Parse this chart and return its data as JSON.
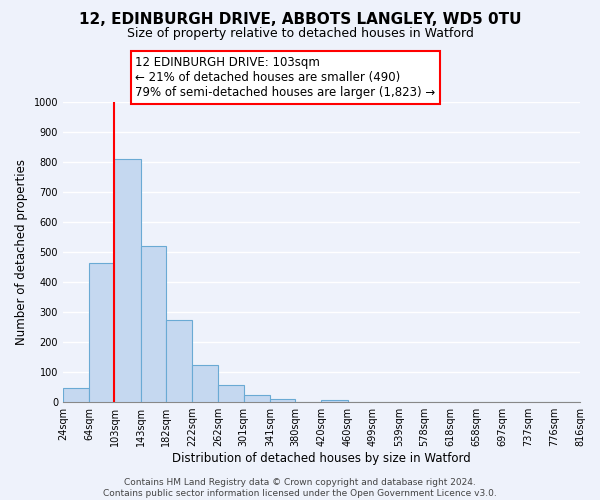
{
  "title": "12, EDINBURGH DRIVE, ABBOTS LANGLEY, WD5 0TU",
  "subtitle": "Size of property relative to detached houses in Watford",
  "xlabel": "Distribution of detached houses by size in Watford",
  "ylabel": "Number of detached properties",
  "bar_edges": [
    24,
    64,
    103,
    143,
    182,
    222,
    262,
    301,
    341,
    380,
    420,
    460,
    499,
    539,
    578,
    618,
    658,
    697,
    737,
    776,
    816
  ],
  "bar_heights": [
    48,
    462,
    810,
    520,
    275,
    125,
    58,
    22,
    11,
    0,
    8,
    0,
    0,
    0,
    0,
    0,
    0,
    0,
    0,
    0
  ],
  "bar_color": "#c5d8f0",
  "bar_edge_color": "#6aaad4",
  "property_line_x": 103,
  "property_line_color": "red",
  "ylim": [
    0,
    1000
  ],
  "yticks": [
    0,
    100,
    200,
    300,
    400,
    500,
    600,
    700,
    800,
    900,
    1000
  ],
  "xtick_labels": [
    "24sqm",
    "64sqm",
    "103sqm",
    "143sqm",
    "182sqm",
    "222sqm",
    "262sqm",
    "301sqm",
    "341sqm",
    "380sqm",
    "420sqm",
    "460sqm",
    "499sqm",
    "539sqm",
    "578sqm",
    "618sqm",
    "658sqm",
    "697sqm",
    "737sqm",
    "776sqm",
    "816sqm"
  ],
  "annotation_title": "12 EDINBURGH DRIVE: 103sqm",
  "annotation_line1": "← 21% of detached houses are smaller (490)",
  "annotation_line2": "79% of semi-detached houses are larger (1,823) →",
  "annotation_box_color": "white",
  "annotation_box_edgecolor": "red",
  "footer_line1": "Contains HM Land Registry data © Crown copyright and database right 2024.",
  "footer_line2": "Contains public sector information licensed under the Open Government Licence v3.0.",
  "background_color": "#eef2fb",
  "grid_color": "white",
  "title_fontsize": 11,
  "subtitle_fontsize": 9,
  "axis_label_fontsize": 8.5,
  "tick_fontsize": 7,
  "annotation_fontsize": 8.5,
  "footer_fontsize": 6.5
}
